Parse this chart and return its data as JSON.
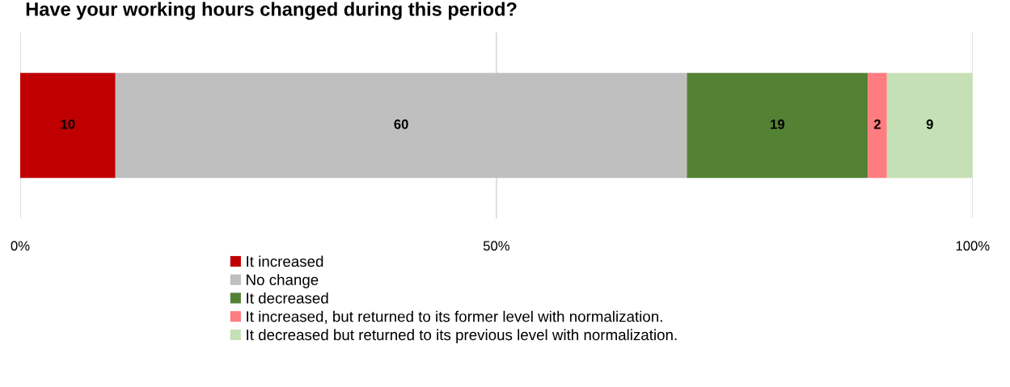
{
  "chart_data": {
    "type": "bar",
    "orientation": "horizontal",
    "stacked": true,
    "title": "Have your working hours changed during this period?",
    "categories": [
      null
    ],
    "series": [
      {
        "name": "It increased",
        "color": "#c00000",
        "values": [
          10
        ]
      },
      {
        "name": "No change",
        "color": "#bfbfbf",
        "values": [
          60
        ]
      },
      {
        "name": "It decreased",
        "color": "#548235",
        "values": [
          19
        ]
      },
      {
        "name": "It increased, but returned to its former level with normalization.",
        "color": "#ff7c80",
        "values": [
          2
        ]
      },
      {
        "name": "It decreased but returned to its previous level with normalization.",
        "color": "#c5e0b4",
        "values": [
          9
        ]
      }
    ],
    "xlim": [
      0,
      100
    ],
    "xticks": [
      {
        "value": 0,
        "label": "0%"
      },
      {
        "value": 50,
        "label": "50%"
      },
      {
        "value": 100,
        "label": "100%"
      }
    ],
    "grid": "x",
    "legend": "bottom",
    "data_labels": true
  }
}
